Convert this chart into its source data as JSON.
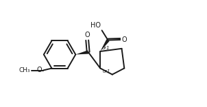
{
  "background_color": "#ffffff",
  "line_color": "#1a1a1a",
  "line_width": 1.4,
  "figsize": [
    3.02,
    1.56
  ],
  "dpi": 100,
  "xlim": [
    0,
    10
  ],
  "ylim": [
    0,
    5.2
  ]
}
